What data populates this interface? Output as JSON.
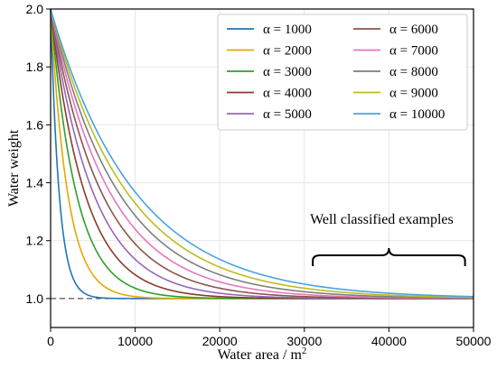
{
  "chart_data": {
    "type": "line",
    "xlabel": "Water area / m",
    "xlabel_sup": "2",
    "ylabel": "Water weight",
    "xlim": [
      0,
      50000
    ],
    "ylim": [
      0.9,
      2.0
    ],
    "xticks": [
      "0",
      "10000",
      "20000",
      "30000",
      "40000",
      "50000"
    ],
    "yticks": [
      "1.0",
      "1.2",
      "1.4",
      "1.6",
      "1.8",
      "2.0"
    ],
    "grid": true,
    "legend_position": "upper right",
    "baseline": {
      "y": 1.0,
      "style": "dashed",
      "color": "#555555"
    },
    "annotation": "Well classified examples",
    "series": [
      {
        "name": "α = 1000",
        "alpha": 1000,
        "color": "#1f77b4"
      },
      {
        "name": "α = 2000",
        "alpha": 2000,
        "color": "#e6a800"
      },
      {
        "name": "α = 3000",
        "alpha": 3000,
        "color": "#2ca02c"
      },
      {
        "name": "α = 4000",
        "alpha": 4000,
        "color": "#8b3a2b"
      },
      {
        "name": "α = 5000",
        "alpha": 5000,
        "color": "#9467bd"
      },
      {
        "name": "α = 6000",
        "alpha": 6000,
        "color": "#8c564b"
      },
      {
        "name": "α = 7000",
        "alpha": 7000,
        "color": "#e377c2"
      },
      {
        "name": "α = 8000",
        "alpha": 8000,
        "color": "#7f7f7f"
      },
      {
        "name": "α = 9000",
        "alpha": 9000,
        "color": "#bcbd22"
      },
      {
        "name": "α = 10000",
        "alpha": 10000,
        "color": "#4aa3df"
      }
    ]
  }
}
